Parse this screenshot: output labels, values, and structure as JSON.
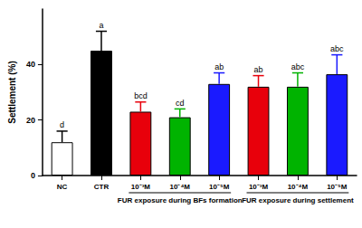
{
  "chart_data": {
    "type": "bar",
    "y_label": "Settlement (%)",
    "categories": [
      "NC",
      "CTR",
      "10⁻³M",
      "10⁻⁴M",
      "10⁻⁵M",
      "10⁻³M",
      "10⁻⁴M",
      "10⁻⁵M"
    ],
    "values": [
      12,
      45,
      23,
      21,
      33,
      32,
      32,
      36.5
    ],
    "errors": [
      4,
      7,
      3.5,
      3,
      4,
      4,
      5,
      7
    ],
    "letters": [
      "d",
      "a",
      "bcd",
      "cd",
      "ab",
      "ab",
      "abc",
      "abc"
    ],
    "colors": [
      "#ffffff",
      "#000000",
      "#e8000b",
      "#00b300",
      "#1a1aff",
      "#e8000b",
      "#00b300",
      "#1a1aff"
    ],
    "groups": [
      {
        "label": "FUR exposure during BFs formation",
        "categories": [
          2,
          3,
          4
        ]
      },
      {
        "label": "FUR exposure during settlement",
        "categories": [
          5,
          6,
          7
        ]
      }
    ],
    "ylim": [
      0,
      60
    ],
    "yticks": [
      0,
      20,
      40
    ],
    "grid": false
  }
}
